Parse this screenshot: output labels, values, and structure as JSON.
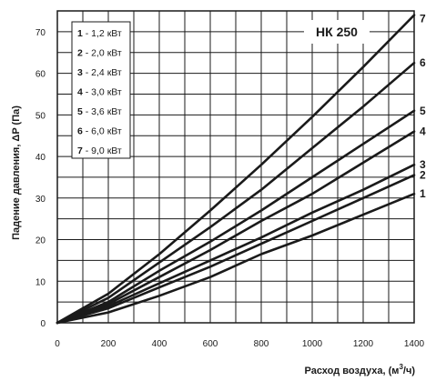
{
  "chart_data": {
    "type": "line",
    "model_label": "НК 250",
    "xlabel": "Расход воздуха, (м",
    "xlabel_sup": "3",
    "xlabel_end": "/ч)",
    "ylabel": "Падение давления, ΔP (Па)",
    "xlim": [
      0,
      1400
    ],
    "ylim": [
      0,
      75
    ],
    "x_ticks": [
      "0",
      "200",
      "400",
      "600",
      "800",
      "1000",
      "1200",
      "1400"
    ],
    "y_ticks": [
      "0",
      "10",
      "20",
      "30",
      "40",
      "50",
      "60",
      "70"
    ],
    "grid": true,
    "legend_position": "top-left",
    "legend": [
      {
        "num": "1",
        "text": " - 1,2 кВт"
      },
      {
        "num": "2",
        "text": " - 2,0 кВт"
      },
      {
        "num": "3",
        "text": " - 2,4 кВт"
      },
      {
        "num": "4",
        "text": " - 3,0 кВт"
      },
      {
        "num": "5",
        "text": " - 3,6 кВт"
      },
      {
        "num": "6",
        "text": " - 6,0 кВт"
      },
      {
        "num": "7",
        "text": " - 9,0 кВт"
      }
    ],
    "x": [
      0,
      200,
      400,
      600,
      800,
      1000,
      1200,
      1400
    ],
    "series": [
      {
        "name": "1",
        "values": [
          0,
          2.5,
          6.5,
          11,
          16.5,
          21,
          26,
          31
        ]
      },
      {
        "name": "2",
        "values": [
          0,
          3.5,
          8.5,
          13.5,
          19,
          24.5,
          30,
          35.5
        ]
      },
      {
        "name": "3",
        "values": [
          0,
          4,
          9.5,
          15,
          20.5,
          26.5,
          32,
          38
        ]
      },
      {
        "name": "4",
        "values": [
          0,
          4.5,
          11,
          17.5,
          24.5,
          31,
          38.5,
          46
        ]
      },
      {
        "name": "5",
        "values": [
          0,
          5,
          12.5,
          19.5,
          27,
          35,
          43,
          51
        ]
      },
      {
        "name": "6",
        "values": [
          0,
          6,
          14.5,
          23,
          32,
          42,
          52,
          62.5
        ]
      },
      {
        "name": "7",
        "values": [
          0,
          7,
          16.5,
          27,
          38,
          49.5,
          61.5,
          74
        ]
      }
    ]
  }
}
